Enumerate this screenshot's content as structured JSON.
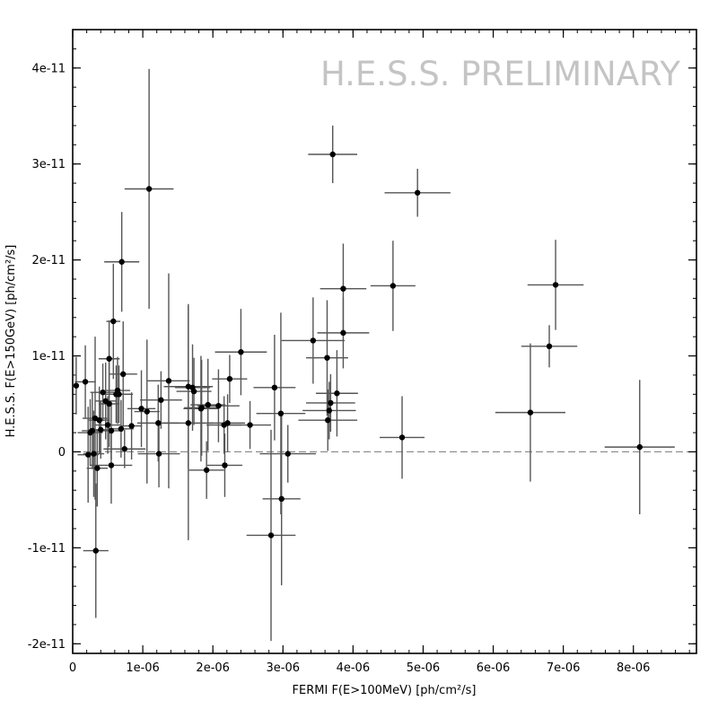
{
  "chart_data": {
    "type": "scatter",
    "watermark": "H.E.S.S. PRELIMINARY",
    "xlabel": "FERMI F(E>100MeV) [ph/cm²/s]",
    "ylabel": "H.E.S.S. F(E>150GeV) [ph/cm²/s]",
    "xlim": [
      0,
      8.9e-06
    ],
    "ylim": [
      -2.1e-11,
      4.4e-11
    ],
    "x_ticks": [
      0,
      1e-06,
      2e-06,
      3e-06,
      4e-06,
      5e-06,
      6e-06,
      7e-06,
      8e-06
    ],
    "x_tick_labels": [
      "0",
      "1e-06",
      "2e-06",
      "3e-06",
      "4e-06",
      "5e-06",
      "6e-06",
      "7e-06",
      "8e-06"
    ],
    "y_ticks": [
      -2e-11,
      -1e-11,
      0,
      1e-11,
      2e-11,
      3e-11,
      4e-11
    ],
    "y_tick_labels": [
      "-2e-11",
      "-1e-11",
      "0",
      "1e-11",
      "2e-11",
      "3e-11",
      "4e-11"
    ],
    "zero_line": "dashed",
    "grid": false,
    "colors": {
      "points": "#000000",
      "error_bars": "#555555",
      "axes": "#000000",
      "zero_line": "#888888",
      "watermark": "#c4c4c4"
    },
    "points": [
      {
        "x": 5e-08,
        "y": 6.9e-12,
        "xerr": 0.0,
        "yerr": 3e-12
      },
      {
        "x": 1.8e-07,
        "y": 7.3e-12,
        "xerr": 1.5e-07,
        "yerr": 3.8e-12
      },
      {
        "x": 2.2e-07,
        "y": -3e-13,
        "xerr": 1.5e-07,
        "yerr": 5e-12
      },
      {
        "x": 2.5e-07,
        "y": 2e-12,
        "xerr": 1.8e-07,
        "yerr": 3.5e-12
      },
      {
        "x": 2.8e-07,
        "y": 2.2e-12,
        "xerr": 1.5e-07,
        "yerr": 4e-12
      },
      {
        "x": 3e-07,
        "y": -2e-13,
        "xerr": 1.5e-07,
        "yerr": 4.5e-12
      },
      {
        "x": 3.2e-07,
        "y": 3.5e-12,
        "xerr": 1.8e-07,
        "yerr": 8.5e-12
      },
      {
        "x": 3.3e-07,
        "y": -1.03e-11,
        "xerr": 1.8e-07,
        "yerr": 7e-12
      },
      {
        "x": 3.5e-07,
        "y": -1.7e-12,
        "xerr": 1.5e-07,
        "yerr": 4e-12
      },
      {
        "x": 3.8e-07,
        "y": 3.3e-12,
        "xerr": 1.5e-07,
        "yerr": 3.5e-12
      },
      {
        "x": 4e-07,
        "y": 2.3e-12,
        "xerr": 1.8e-07,
        "yerr": 3e-12
      },
      {
        "x": 4.3e-07,
        "y": 6.2e-12,
        "xerr": 1.8e-07,
        "yerr": 3e-12
      },
      {
        "x": 4.7e-07,
        "y": 5.3e-12,
        "xerr": 1.5e-07,
        "yerr": 4e-12
      },
      {
        "x": 5e-07,
        "y": 2.8e-12,
        "xerr": 1.8e-07,
        "yerr": 3e-12
      },
      {
        "x": 5.2e-07,
        "y": 5e-12,
        "xerr": 1.5e-07,
        "yerr": 4.5e-12
      },
      {
        "x": 5.2e-07,
        "y": 9.7e-12,
        "xerr": 1.5e-07,
        "yerr": 4e-12
      },
      {
        "x": 5.5e-07,
        "y": 2.2e-12,
        "xerr": 1.5e-07,
        "yerr": 3e-12
      },
      {
        "x": 5.5e-07,
        "y": -1.4e-12,
        "xerr": 3e-07,
        "yerr": 4e-12
      },
      {
        "x": 5.8e-07,
        "y": 1.36e-11,
        "xerr": 1e-07,
        "yerr": 6e-12
      },
      {
        "x": 6.2e-07,
        "y": 6e-12,
        "xerr": 2e-07,
        "yerr": 3e-12
      },
      {
        "x": 6.4e-07,
        "y": 6.4e-12,
        "xerr": 1.8e-07,
        "yerr": 3.5e-12
      },
      {
        "x": 6.6e-07,
        "y": 6e-12,
        "xerr": 2e-07,
        "yerr": 3e-12
      },
      {
        "x": 6.9e-07,
        "y": 2.4e-12,
        "xerr": 1.8e-07,
        "yerr": 3e-12
      },
      {
        "x": 7e-07,
        "y": 1.98e-11,
        "xerr": 2.5e-07,
        "yerr": 5.2e-12
      },
      {
        "x": 7.2e-07,
        "y": 8.1e-12,
        "xerr": 2e-07,
        "yerr": 5.5e-12
      },
      {
        "x": 7.4e-07,
        "y": 3e-13,
        "xerr": 3e-07,
        "yerr": 2e-12
      },
      {
        "x": 8.4e-07,
        "y": 2.7e-12,
        "xerr": 1.5e-07,
        "yerr": 3.5e-12
      },
      {
        "x": 9.8e-07,
        "y": 4.5e-12,
        "xerr": 2e-07,
        "yerr": 4e-12
      },
      {
        "x": 1.06e-06,
        "y": 4.2e-12,
        "xerr": 1.8e-07,
        "yerr": 7.5e-12
      },
      {
        "x": 1.09e-06,
        "y": 2.74e-11,
        "xerr": 3.5e-07,
        "yerr": 1.25e-11
      },
      {
        "x": 1.22e-06,
        "y": 3e-12,
        "xerr": 3e-07,
        "yerr": 4e-12
      },
      {
        "x": 1.23e-06,
        "y": -2e-13,
        "xerr": 3e-07,
        "yerr": 3.5e-12
      },
      {
        "x": 1.26e-06,
        "y": 5.4e-12,
        "xerr": 3e-07,
        "yerr": 3e-12
      },
      {
        "x": 1.37e-06,
        "y": 7.4e-12,
        "xerr": 3e-07,
        "yerr": 1.12e-11
      },
      {
        "x": 1.65e-06,
        "y": 6.8e-12,
        "xerr": 3.5e-07,
        "yerr": 8.6e-12
      },
      {
        "x": 1.65e-06,
        "y": 3e-12,
        "xerr": 3.5e-07,
        "yerr": 1.22e-11
      },
      {
        "x": 1.71e-06,
        "y": 6.7e-12,
        "xerr": 2.5e-07,
        "yerr": 4.5e-12
      },
      {
        "x": 1.73e-06,
        "y": 6.3e-12,
        "xerr": 2.5e-07,
        "yerr": 3.5e-12
      },
      {
        "x": 1.83e-06,
        "y": 4.5e-12,
        "xerr": 2.5e-07,
        "yerr": 5.5e-12
      },
      {
        "x": 1.84e-06,
        "y": 4.6e-12,
        "xerr": 2.5e-07,
        "yerr": 5e-12
      },
      {
        "x": 1.91e-06,
        "y": -1.9e-12,
        "xerr": 2.5e-07,
        "yerr": 3e-12
      },
      {
        "x": 1.93e-06,
        "y": 4.9e-12,
        "xerr": 2.5e-07,
        "yerr": 4.8e-12
      },
      {
        "x": 2.08e-06,
        "y": 4.8e-12,
        "xerr": 3e-07,
        "yerr": 3.8e-12
      },
      {
        "x": 2.16e-06,
        "y": 2.8e-12,
        "xerr": 2.5e-07,
        "yerr": 3e-12
      },
      {
        "x": 2.17e-06,
        "y": -1.4e-12,
        "xerr": 2.5e-07,
        "yerr": 3.3e-12
      },
      {
        "x": 2.21e-06,
        "y": 3e-12,
        "xerr": 2.5e-07,
        "yerr": 3e-12
      },
      {
        "x": 2.24e-06,
        "y": 7.6e-12,
        "xerr": 2.5e-07,
        "yerr": 2.5e-12
      },
      {
        "x": 2.4e-06,
        "y": 1.04e-11,
        "xerr": 3.7e-07,
        "yerr": 4.5e-12
      },
      {
        "x": 2.53e-06,
        "y": 2.8e-12,
        "xerr": 3e-07,
        "yerr": 2.5e-12
      },
      {
        "x": 2.83e-06,
        "y": -8.7e-12,
        "xerr": 3.5e-07,
        "yerr": 1.1e-11
      },
      {
        "x": 2.88e-06,
        "y": 6.7e-12,
        "xerr": 3e-07,
        "yerr": 5.5e-12
      },
      {
        "x": 2.97e-06,
        "y": 4e-12,
        "xerr": 3.5e-07,
        "yerr": 1.05e-11
      },
      {
        "x": 2.98e-06,
        "y": -4.9e-12,
        "xerr": 2.7e-07,
        "yerr": 9e-12
      },
      {
        "x": 3.07e-06,
        "y": -2e-13,
        "xerr": 4e-07,
        "yerr": 3e-12
      },
      {
        "x": 3.43e-06,
        "y": 1.16e-11,
        "xerr": 4.5e-07,
        "yerr": 4.5e-12
      },
      {
        "x": 3.63e-06,
        "y": 9.8e-12,
        "xerr": 3e-07,
        "yerr": 6e-12
      },
      {
        "x": 3.64e-06,
        "y": 3.3e-12,
        "xerr": 4.2e-07,
        "yerr": 3.2e-12
      },
      {
        "x": 3.66e-06,
        "y": 4.3e-12,
        "xerr": 3.8e-07,
        "yerr": 3e-12
      },
      {
        "x": 3.68e-06,
        "y": 5.1e-12,
        "xerr": 3.5e-07,
        "yerr": 3e-12
      },
      {
        "x": 3.71e-06,
        "y": 3.1e-11,
        "xerr": 3.5e-07,
        "yerr": 3e-12
      },
      {
        "x": 3.77e-06,
        "y": 6.1e-12,
        "xerr": 3e-07,
        "yerr": 4.5e-12
      },
      {
        "x": 3.86e-06,
        "y": 1.7e-11,
        "xerr": 3.3e-07,
        "yerr": 4.7e-12
      },
      {
        "x": 3.86e-06,
        "y": 1.24e-11,
        "xerr": 3.7e-07,
        "yerr": 3.7e-12
      },
      {
        "x": 4.57e-06,
        "y": 1.73e-11,
        "xerr": 3.2e-07,
        "yerr": 4.7e-12
      },
      {
        "x": 4.7e-06,
        "y": 1.5e-12,
        "xerr": 3.2e-07,
        "yerr": 4.3e-12
      },
      {
        "x": 4.92e-06,
        "y": 2.7e-11,
        "xerr": 4.7e-07,
        "yerr": 2.5e-12
      },
      {
        "x": 6.53e-06,
        "y": 4.1e-12,
        "xerr": 5e-07,
        "yerr": 7.2e-12
      },
      {
        "x": 6.8e-06,
        "y": 1.1e-11,
        "xerr": 4e-07,
        "yerr": 2.2e-12
      },
      {
        "x": 6.89e-06,
        "y": 1.74e-11,
        "xerr": 4e-07,
        "yerr": 4.7e-12
      },
      {
        "x": 8.09e-06,
        "y": 5e-13,
        "xerr": 5e-07,
        "yerr": 7e-12
      }
    ]
  }
}
